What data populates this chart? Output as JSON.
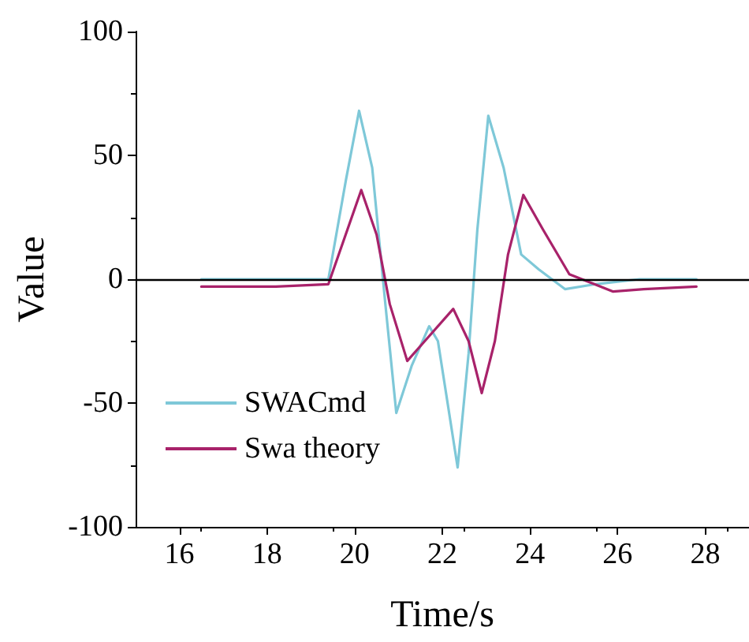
{
  "chart_data": {
    "type": "line",
    "xlabel": "Time/s",
    "ylabel": "Value",
    "xlim": [
      15,
      29
    ],
    "ylim": [
      -100,
      100
    ],
    "xticks": [
      16,
      18,
      20,
      22,
      24,
      26,
      28
    ],
    "yticks": [
      -100,
      -50,
      0,
      50,
      100
    ],
    "grid": false,
    "legend": "bottom left",
    "marker": "none",
    "line_style": "solid",
    "ref_lines": [
      {
        "axis": "y",
        "value": 0,
        "color": "#000000"
      }
    ],
    "series": [
      {
        "name": "SWACmd",
        "color": "#7ec8d8",
        "x": [
          16.5,
          19.4,
          19.8,
          20.1,
          20.4,
          20.7,
          20.95,
          21.3,
          21.7,
          21.9,
          22.35,
          22.6,
          22.8,
          23.05,
          23.4,
          23.8,
          24.2,
          24.8,
          25.5,
          26,
          26.5,
          27.8
        ],
        "values": [
          0,
          0,
          40,
          68,
          45,
          -10,
          -54,
          -35,
          -19,
          -25,
          -76,
          -30,
          20,
          66,
          45,
          10,
          4,
          -4,
          -2,
          -1,
          0,
          0
        ]
      },
      {
        "name": "Swa theory",
        "color": "#a8226a",
        "x": [
          16.5,
          18.2,
          19.4,
          20.15,
          20.5,
          20.8,
          21.2,
          21.6,
          22.25,
          22.6,
          22.9,
          23.2,
          23.5,
          23.85,
          24.3,
          24.9,
          25.9,
          26.6,
          27.8
        ],
        "values": [
          -3,
          -3,
          -2,
          36,
          18,
          -10,
          -33,
          -25,
          -12,
          -25,
          -46,
          -25,
          10,
          34,
          20,
          2,
          -5,
          -4,
          -3
        ]
      }
    ]
  }
}
